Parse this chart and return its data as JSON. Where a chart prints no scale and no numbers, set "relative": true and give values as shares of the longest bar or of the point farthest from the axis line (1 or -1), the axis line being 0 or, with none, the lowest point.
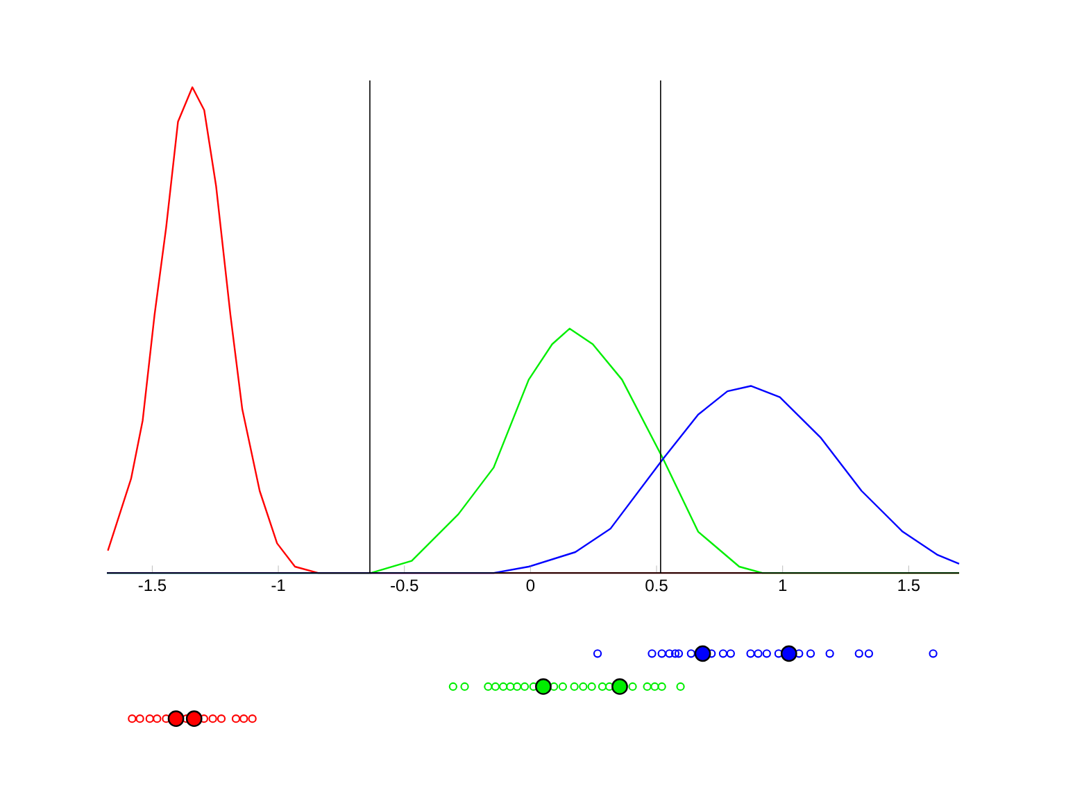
{
  "chart_data": {
    "type": "line",
    "relative": true,
    "xlim": [
      -1.68,
      1.7
    ],
    "xticks": [
      -1.5,
      -1,
      -0.5,
      0,
      0.5,
      1,
      1.5
    ],
    "grid": false,
    "series": [
      {
        "color": "#ff0000",
        "x": [
          -1.676,
          -1.584,
          -1.538,
          -1.491,
          -1.445,
          -1.398,
          -1.341,
          -1.294,
          -1.247,
          -1.19,
          -1.143,
          -1.074,
          -1.005,
          -0.934,
          -0.842,
          1.7
        ],
        "values": [
          0.046,
          0.194,
          0.314,
          0.531,
          0.711,
          0.929,
          1,
          0.953,
          0.797,
          0.531,
          0.337,
          0.169,
          0.061,
          0.013,
          0,
          0
        ]
      },
      {
        "color": "#00ee00",
        "x": [
          -1.68,
          -0.633,
          -0.471,
          -0.286,
          -0.146,
          -0.007,
          0.086,
          0.155,
          0.247,
          0.363,
          0.526,
          0.665,
          0.828,
          0.92,
          1.7
        ],
        "values": [
          0,
          0,
          0.025,
          0.121,
          0.217,
          0.398,
          0.471,
          0.503,
          0.471,
          0.398,
          0.235,
          0.085,
          0.013,
          0,
          0
        ]
      },
      {
        "color": "#0000ff",
        "x": [
          -1.68,
          -0.146,
          -0.007,
          0.178,
          0.317,
          0.526,
          0.665,
          0.781,
          0.874,
          0.989,
          1.152,
          1.313,
          1.476,
          1.615,
          1.7
        ],
        "values": [
          0,
          0,
          0.013,
          0.043,
          0.091,
          0.235,
          0.326,
          0.374,
          0.385,
          0.362,
          0.278,
          0.169,
          0.085,
          0.037,
          0.019
        ]
      },
      {
        "type": "scatter",
        "color": "#0000ff",
        "marker": "circle",
        "x": [
          0.266,
          0.482,
          0.521,
          0.551,
          0.574,
          0.588,
          0.637,
          0.718,
          0.764,
          0.794,
          0.873,
          0.903,
          0.937,
          0.984,
          1.065,
          1.111,
          1.187,
          1.303,
          1.342,
          1.597
        ],
        "values": [
          -0.166,
          -0.166,
          -0.166,
          -0.166,
          -0.166,
          -0.166,
          -0.166,
          -0.166,
          -0.166,
          -0.166,
          -0.166,
          -0.166,
          -0.166,
          -0.166,
          -0.166,
          -0.166,
          -0.166,
          -0.166,
          -0.166,
          -0.166
        ]
      },
      {
        "type": "scatter",
        "color": "#00ee00",
        "marker": "circle",
        "x": [
          -0.307,
          -0.261,
          -0.168,
          -0.139,
          -0.108,
          -0.08,
          -0.053,
          -0.023,
          0.012,
          0.093,
          0.128,
          0.174,
          0.209,
          0.243,
          0.285,
          0.313,
          0.405,
          0.463,
          0.493,
          0.521,
          0.595
        ],
        "values": [
          -0.234,
          -0.234,
          -0.234,
          -0.234,
          -0.234,
          -0.234,
          -0.234,
          -0.234,
          -0.234,
          -0.234,
          -0.234,
          -0.234,
          -0.234,
          -0.234,
          -0.234,
          -0.234,
          -0.234,
          -0.234,
          -0.234,
          -0.234,
          -0.234
        ]
      },
      {
        "type": "scatter",
        "color": "#ff0000",
        "marker": "circle",
        "x": [
          -1.58,
          -1.549,
          -1.51,
          -1.481,
          -1.445,
          -1.365,
          -1.295,
          -1.26,
          -1.226,
          -1.168,
          -1.137,
          -1.103
        ],
        "values": [
          -0.3,
          -0.3,
          -0.3,
          -0.3,
          -0.3,
          -0.3,
          -0.3,
          -0.3,
          -0.3,
          -0.3,
          -0.3,
          -0.3
        ]
      },
      {
        "type": "bubble",
        "color": "#0000ff",
        "x": [
          0.683,
          1.025
        ],
        "values": [
          -0.166,
          -0.166
        ],
        "sizes": [
          1,
          1
        ]
      },
      {
        "type": "bubble",
        "color": "#00ee00",
        "x": [
          0.051,
          0.354
        ],
        "values": [
          -0.234,
          -0.234
        ],
        "sizes": [
          1,
          1
        ]
      },
      {
        "type": "bubble",
        "color": "#ff0000",
        "x": [
          -1.406,
          -1.334
        ],
        "values": [
          -0.3,
          -0.3
        ],
        "sizes": [
          1,
          1
        ]
      }
    ],
    "ref_lines": [
      {
        "axis": "x",
        "value": -0.637,
        "color": "#000000"
      },
      {
        "axis": "x",
        "value": 0.516,
        "color": "#000000"
      }
    ]
  }
}
